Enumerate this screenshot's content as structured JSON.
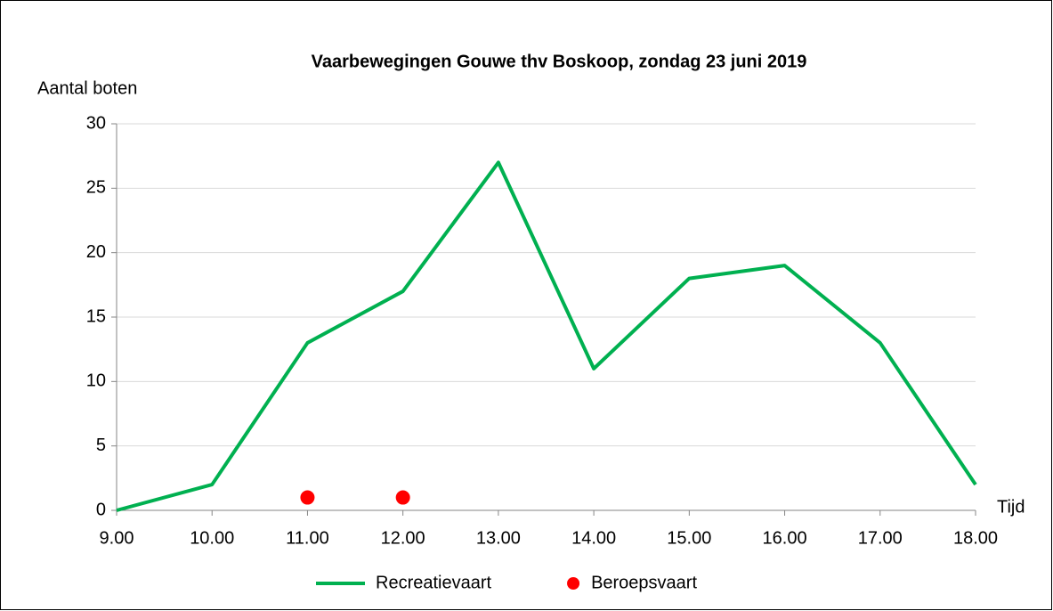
{
  "chart_data": {
    "type": "line",
    "title": "Vaarbewegingen Gouwe thv Boskoop, zondag 23 juni 2019",
    "y_label": "Aantal boten",
    "x_label": "Tijd",
    "x": [
      9,
      10,
      11,
      12,
      13,
      14,
      15,
      16,
      17,
      18
    ],
    "series": [
      {
        "name": "Recreatievaart",
        "type": "line",
        "color": "#00b050",
        "values": [
          0,
          2,
          13,
          17,
          27,
          11,
          18,
          19,
          13,
          2
        ]
      },
      {
        "name": "Beroepsvaart",
        "type": "scatter",
        "color": "#ff0000",
        "values": [
          null,
          null,
          1,
          1,
          null,
          null,
          null,
          null,
          null,
          null
        ]
      }
    ],
    "xlim": [
      9,
      18
    ],
    "xticks": [
      {
        "value": 9,
        "label": "9.00"
      },
      {
        "value": 10,
        "label": "10.00"
      },
      {
        "value": 11,
        "label": "11.00"
      },
      {
        "value": 12,
        "label": "12.00"
      },
      {
        "value": 13,
        "label": "13.00"
      },
      {
        "value": 14,
        "label": "14.00"
      },
      {
        "value": 15,
        "label": "15.00"
      },
      {
        "value": 16,
        "label": "16.00"
      },
      {
        "value": 17,
        "label": "17.00"
      },
      {
        "value": 18,
        "label": "18.00"
      }
    ],
    "ylim": [
      0,
      30
    ],
    "yticks": [
      0,
      5,
      10,
      15,
      20,
      25,
      30
    ],
    "grid": true,
    "legend": "bottom"
  }
}
